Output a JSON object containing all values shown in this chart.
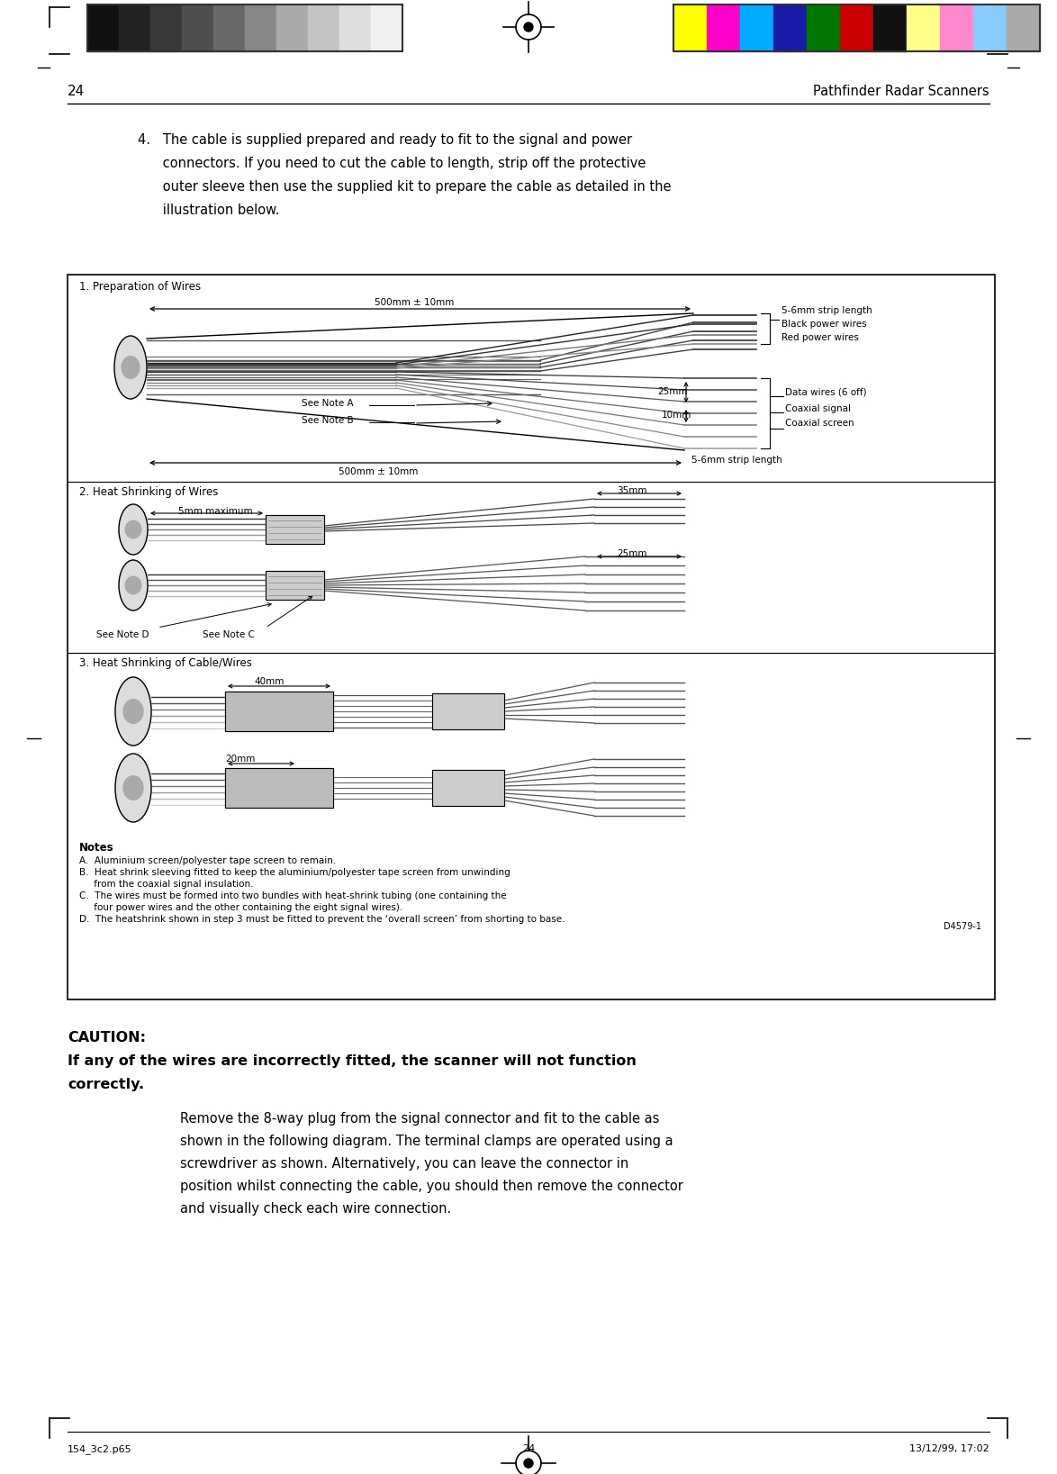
{
  "page_number": "24",
  "header_title": "Pathfinder Radar Scanners",
  "footer_left": "154_3c2.p65",
  "footer_center": "24",
  "footer_right": "13/12/99, 17:02",
  "caution_heading": "CAUTION:",
  "caution_bold_line1": "If any of the wires are incorrectly fitted, the scanner will not function",
  "caution_bold_line2": "correctly.",
  "caution_normal": [
    "Remove the 8-way plug from the signal connector and fit to the cable as",
    "shown in the following diagram. The terminal clamps are operated using a",
    "screwdriver as shown. Alternatively, you can leave the connector in",
    "position whilst connecting the cable, you should then remove the connector",
    "and visually check each wire connection."
  ],
  "intro_lines": [
    "4.   The cable is supplied prepared and ready to fit to the signal and power",
    "      connectors. If you need to cut the cable to length, strip off the protective",
    "      outer sleeve then use the supplied kit to prepare the cable as detailed in the",
    "      illustration below."
  ],
  "section1_title": "1. Preparation of Wires",
  "section2_title": "2. Heat Shrinking of Wires",
  "section3_title": "3. Heat Shrinking of Cable/Wires",
  "notes_title": "Notes",
  "note_a": "A.  Aluminium screen/polyester tape screen to remain.",
  "note_b_1": "B.  Heat shrink sleeving fitted to keep the aluminium/polyester tape screen from unwinding",
  "note_b_2": "     from the coaxial signal insulation.",
  "note_c_1": "C.  The wires must be formed into two bundles with heat-shrink tubing (one containing the",
  "note_c_2": "     four power wires and the other containing the eight signal wires).",
  "note_d": "D.  The heatshrink shown in step 3 must be fitted to prevent the ‘overall screen’ from shorting to base.",
  "doc_ref": "D4579-1",
  "label_500mm_top": "500mm ± 10mm",
  "label_500mm_bot": "500mm ± 10mm",
  "label_5_6mm_top": "5-6mm strip length",
  "label_5_6mm_bot": "5-6mm strip length",
  "label_black_power": "Black power wires",
  "label_red_power": "Red power wires",
  "label_data_wires": "Data wires (6 off)",
  "label_coaxial_signal": "Coaxial signal",
  "label_coaxial_screen": "Coaxial screen",
  "label_see_note_a": "See Note A",
  "label_see_note_b": "See Note B",
  "label_25mm": "25mm",
  "label_10mm": "10mm",
  "label_35mm": "35mm",
  "label_25mm_2": "25mm",
  "label_5mm_max": "5mm maximum",
  "label_see_note_c": "See Note C",
  "label_see_note_d": "See Note D",
  "label_40mm": "40mm",
  "label_20mm": "20mm",
  "gray_colors": [
    "#111111",
    "#222222",
    "#383838",
    "#4e4e4e",
    "#686868",
    "#888888",
    "#aaaaaa",
    "#c4c4c4",
    "#dedede",
    "#f0f0f0"
  ],
  "color_colors": [
    "#ffff00",
    "#ff00cc",
    "#00aaff",
    "#1a1aaa",
    "#007700",
    "#cc0000",
    "#111111",
    "#ffff88",
    "#ff88cc",
    "#88ccff",
    "#aaaaaa"
  ],
  "bg_color": "#ffffff"
}
